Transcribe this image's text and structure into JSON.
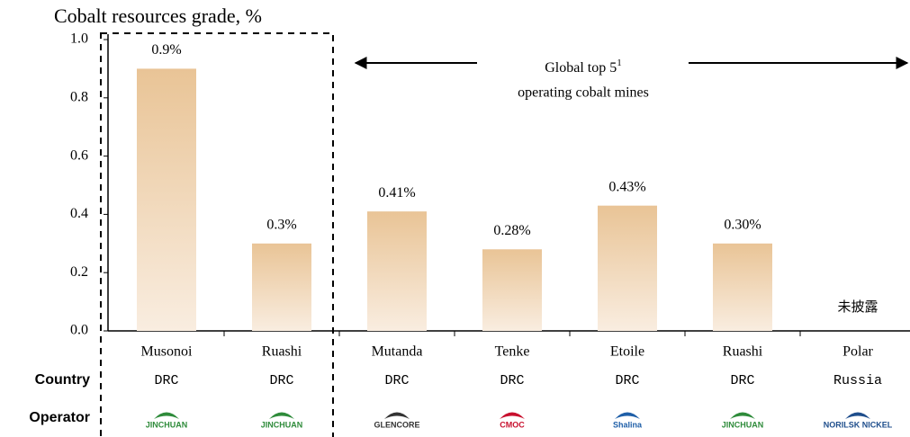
{
  "chart_data": {
    "type": "bar",
    "title": "Cobalt resources grade, %",
    "categories": [
      "Musonoi",
      "Ruashi",
      "Mutanda",
      "Tenke",
      "Etoile",
      "Ruashi",
      "Polar"
    ],
    "values": [
      0.9,
      0.3,
      0.41,
      0.28,
      0.43,
      0.3,
      null
    ],
    "value_labels": [
      "0.9%",
      "0.3%",
      "0.41%",
      "0.28%",
      "0.43%",
      "0.30%",
      null
    ],
    "undisclosed_label": "未披露",
    "color": "#e9c496",
    "ylim": [
      0,
      1
    ],
    "yticks": [
      {
        "value": 0,
        "label": "0.0"
      },
      0.2,
      0.4,
      0.6,
      0.8,
      {
        "value": 1,
        "label": "1.0"
      }
    ],
    "banner": {
      "text": "Global top 5",
      "superscript": "1",
      "line2": "operating cobalt mines"
    },
    "rows": [
      {
        "label": "Country",
        "values": [
          "DRC",
          "DRC",
          "DRC",
          "DRC",
          "DRC",
          "DRC",
          "Russia"
        ]
      },
      {
        "label": "Operator",
        "values": [
          "JINCHUAN",
          "JINCHUAN",
          "GLENCORE",
          "CMOC",
          "Shalina",
          "JINCHUAN",
          "NORILSK NICKEL"
        ]
      }
    ]
  }
}
